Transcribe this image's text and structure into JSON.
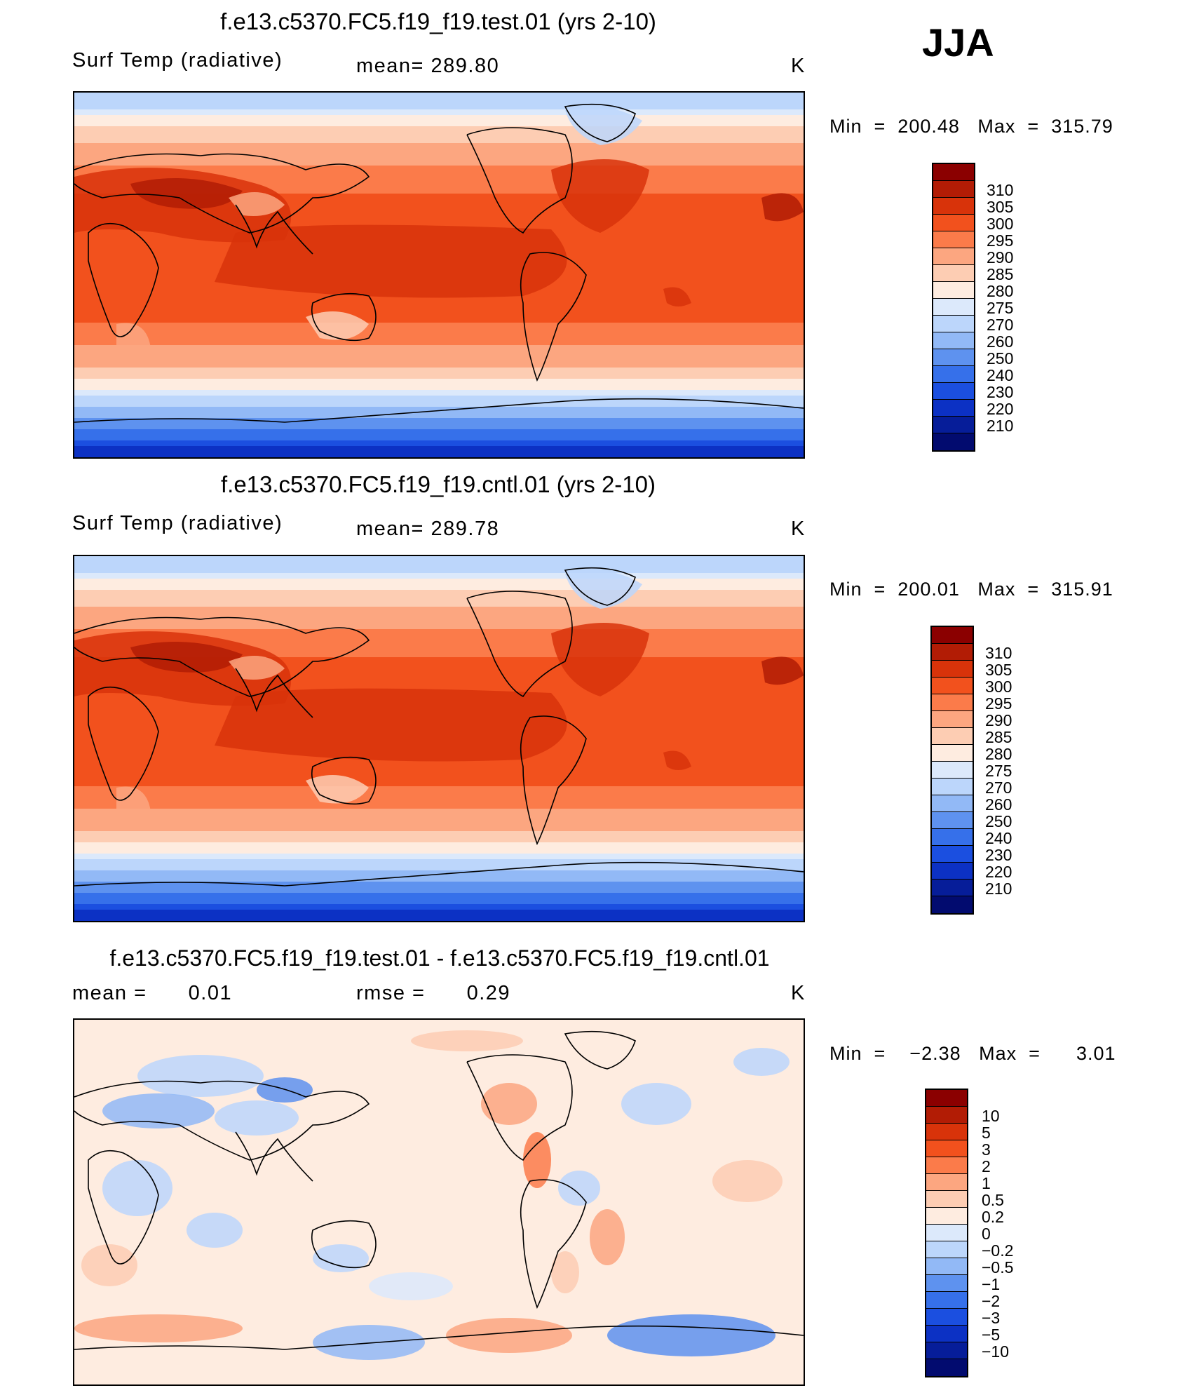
{
  "season": "JJA",
  "colors": {
    "temp_palette": [
      "#8b0000",
      "#b21c05",
      "#d8330a",
      "#f2511d",
      "#fb7b4a",
      "#fca680",
      "#fdcdb3",
      "#feece0",
      "#dce9fb",
      "#bcd6fb",
      "#92b9f6",
      "#5e92ef",
      "#3670ea",
      "#1b4fe0",
      "#0c31c4",
      "#061d99",
      "#020b6f"
    ],
    "diff_palette": [
      "#8b0000",
      "#b21c05",
      "#d8330a",
      "#f2511d",
      "#fb7b4a",
      "#fca680",
      "#fdcdb3",
      "#feece0",
      "#dce9fb",
      "#bcd6fb",
      "#92b9f6",
      "#5e92ef",
      "#3670ea",
      "#1b4fe0",
      "#0c31c4",
      "#061d99",
      "#020b6f"
    ]
  },
  "chart_data": [
    {
      "type": "heatmap",
      "name": "panel-test",
      "title": "f.e13.c5370.FC5.f19_f19.test.01 (yrs 2-10)",
      "variable": "Surf Temp (radiative)",
      "stat_text": "mean= 289.80",
      "units": "K",
      "min_label": "Min",
      "min_value": "200.48",
      "max_label": "Max",
      "max_value": "315.79",
      "levels": [
        "310",
        "305",
        "300",
        "295",
        "290",
        "285",
        "280",
        "275",
        "270",
        "260",
        "250",
        "240",
        "230",
        "220",
        "210"
      ],
      "palette": "temp_palette",
      "latitude_band_means_K": [
        262,
        280,
        288,
        294,
        298,
        300,
        299,
        297,
        293,
        285,
        272,
        245,
        212
      ]
    },
    {
      "type": "heatmap",
      "name": "panel-cntl",
      "title": "f.e13.c5370.FC5.f19_f19.cntl.01 (yrs 2-10)",
      "variable": "Surf Temp (radiative)",
      "stat_text": "mean= 289.78",
      "units": "K",
      "min_label": "Min",
      "min_value": "200.01",
      "max_label": "Max",
      "max_value": "315.91",
      "levels": [
        "310",
        "305",
        "300",
        "295",
        "290",
        "285",
        "280",
        "275",
        "270",
        "260",
        "250",
        "240",
        "230",
        "220",
        "210"
      ],
      "palette": "temp_palette",
      "latitude_band_means_K": [
        262,
        280,
        288,
        294,
        298,
        300,
        299,
        297,
        293,
        285,
        272,
        245,
        212
      ]
    },
    {
      "type": "heatmap",
      "name": "panel-diff",
      "title": "f.e13.c5370.FC5.f19_f19.test.01 - f.e13.c5370.FC5.f19_f19.cntl.01",
      "mean_label": "mean =",
      "mean_value": "0.01",
      "rmse_label": "rmse =",
      "rmse_value": "0.29",
      "units": "K",
      "min_label": "Min",
      "min_value": "−2.38",
      "max_label": "Max",
      "max_value": "3.01",
      "levels": [
        "10",
        "5",
        "3",
        "2",
        "1",
        "0.5",
        "0.2",
        "0",
        "−0.2",
        "−0.5",
        "−1",
        "−2",
        "−3",
        "−5",
        "−10"
      ],
      "palette": "diff_palette"
    }
  ]
}
